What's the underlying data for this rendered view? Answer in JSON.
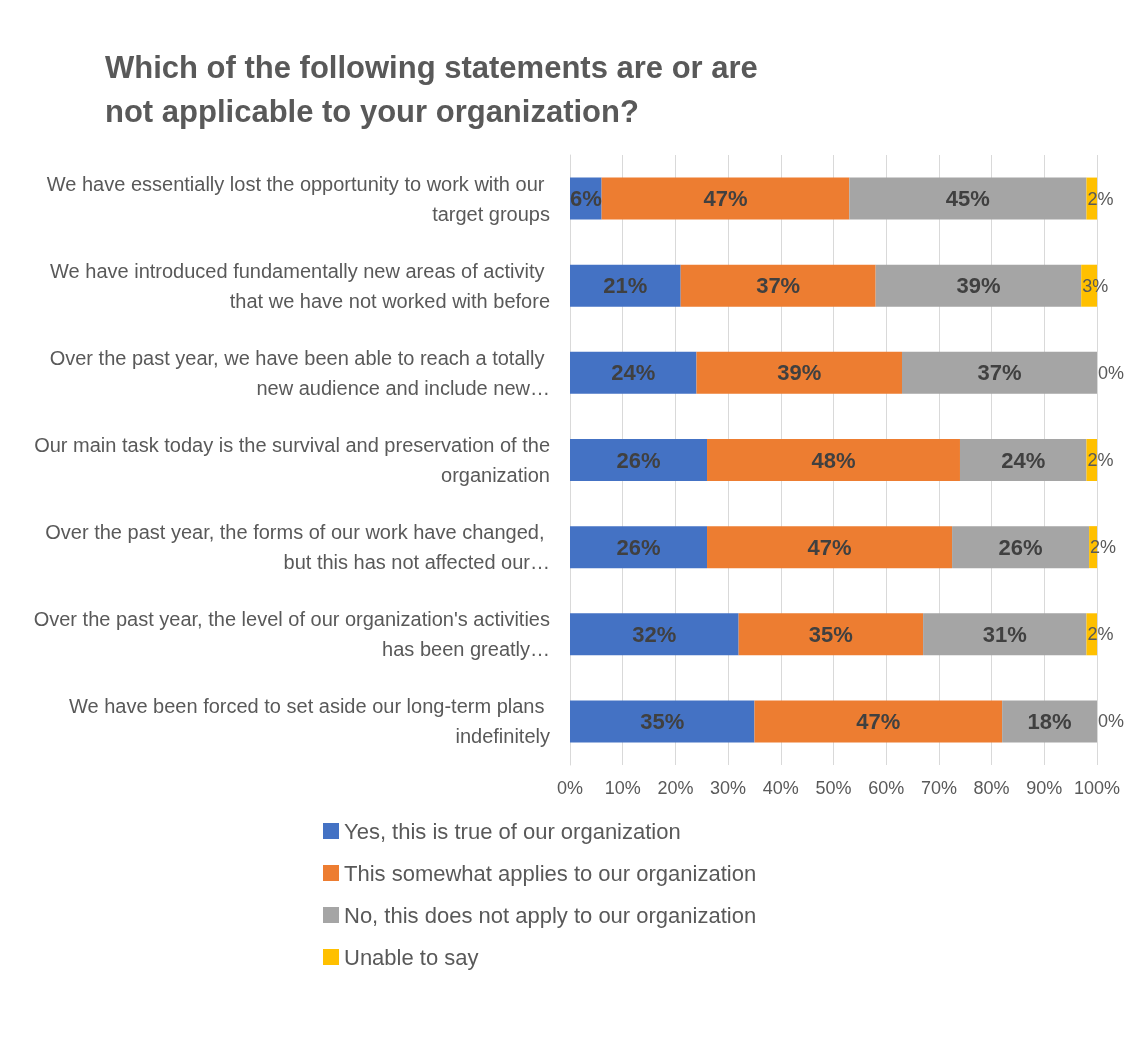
{
  "chart_data": {
    "type": "bar",
    "orientation": "horizontal",
    "stacked": true,
    "title": "Which of the following statements are or are not applicable to your organization?",
    "categories": [
      "We have essentially lost the opportunity to work with our target groups",
      "We have introduced fundamentally new areas of activity that we have not worked with before",
      "Over the past year, we have been able to reach a totally new audience and include new…",
      "Our main task today is the survival and preservation of the organization",
      "Over the past year, the forms of our work have changed, but this has not affected our…",
      "Over the past year, the level of our organization's activities has been greatly…",
      "We have been forced to set aside our long-term plans indefinitely"
    ],
    "series": [
      {
        "name": "Yes, this is true of our organization",
        "color": "#4472c4",
        "values": [
          6,
          21,
          24,
          26,
          26,
          32,
          35
        ],
        "value_labels": [
          "6%",
          "21%",
          "24%",
          "26%",
          "26%",
          "32%",
          "35%"
        ]
      },
      {
        "name": "This somewhat applies to our organization",
        "color": "#ed7d31",
        "values": [
          47,
          37,
          39,
          48,
          46.5,
          35,
          47
        ],
        "value_labels": [
          "47%",
          "37%",
          "39%",
          "48%",
          "47%",
          "35%",
          "47%"
        ]
      },
      {
        "name": "No, this does not apply to our organization",
        "color": "#a5a5a5",
        "values": [
          45,
          39,
          37,
          24,
          26,
          31,
          18
        ],
        "value_labels": [
          "45%",
          "39%",
          "37%",
          "24%",
          "26%",
          "31%",
          "18%"
        ]
      },
      {
        "name": "Unable to say",
        "color": "#ffc000",
        "values": [
          2,
          3,
          0,
          2,
          1.5,
          2,
          0
        ],
        "value_labels": [
          "2%",
          "3%",
          "0%",
          "2%",
          "2%",
          "2%",
          "0%"
        ]
      }
    ],
    "xlim": [
      0,
      100
    ],
    "xticks": [
      {
        "value": 0,
        "label": "0%"
      },
      {
        "value": 10,
        "label": "10%"
      },
      {
        "value": 20,
        "label": "20%"
      },
      {
        "value": 30,
        "label": "30%"
      },
      {
        "value": 40,
        "label": "40%"
      },
      {
        "value": 50,
        "label": "50%"
      },
      {
        "value": 60,
        "label": "60%"
      },
      {
        "value": 70,
        "label": "70%"
      },
      {
        "value": 80,
        "label": "80%"
      },
      {
        "value": 90,
        "label": "90%"
      },
      {
        "value": 100,
        "label": "100%"
      }
    ],
    "grid": "x",
    "legend": "bottom"
  }
}
